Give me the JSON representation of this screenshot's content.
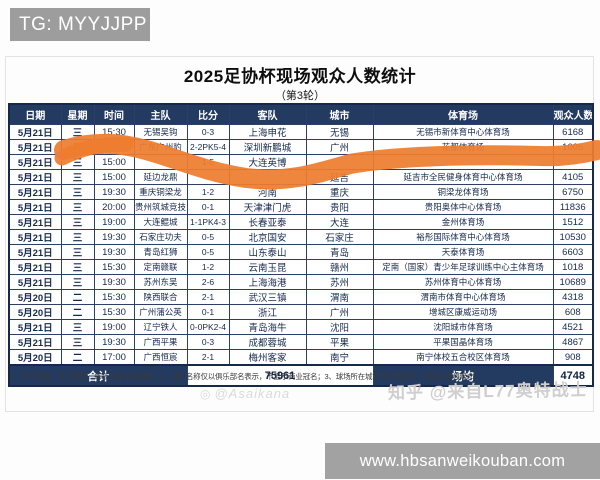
{
  "badge": {
    "text": "TG: MYYJJPP"
  },
  "title": "2025足协杯现场观众人数统计",
  "subtitle": "（第3轮）",
  "table": {
    "headers": [
      "日期",
      "星期",
      "时间",
      "主队",
      "比分",
      "客队",
      "城市",
      "体育场",
      "观众人数"
    ],
    "rows": [
      [
        "5月21日",
        "三",
        "15:30",
        "无锡吴钩",
        "0-3",
        "上海申花",
        "无锡",
        "无锡市新体育中心体育场",
        "6168"
      ],
      [
        "5月21日",
        "三",
        "",
        "广东广州豹",
        "2-2PK5-4",
        "深圳新鹏城",
        "广州",
        "花都体育场",
        "1005"
      ],
      [
        "5月21日",
        "三",
        "15:00",
        "",
        "1-5",
        "大连英博",
        "",
        "",
        ""
      ],
      [
        "5月21日",
        "三",
        "15:00",
        "延边龙鼎",
        "",
        "",
        "延吉",
        "延吉市全民健身体育中心体育场",
        "4105"
      ],
      [
        "5月21日",
        "三",
        "19:30",
        "重庆铜梁龙",
        "1-2",
        "河南",
        "重庆",
        "铜梁龙体育场",
        "6750"
      ],
      [
        "5月21日",
        "三",
        "20:00",
        "贵州筑城竞技",
        "0-1",
        "天津津门虎",
        "贵阳",
        "贵阳奥体中心体育场",
        "11836"
      ],
      [
        "5月21日",
        "三",
        "19:00",
        "大连鲲城",
        "1-1PK4-3",
        "长春亚泰",
        "大连",
        "金州体育场",
        "1512"
      ],
      [
        "5月21日",
        "三",
        "19:30",
        "石家庄功夫",
        "0-5",
        "北京国安",
        "石家庄",
        "裕彤国际体育中心体育场",
        "10530"
      ],
      [
        "5月21日",
        "三",
        "19:30",
        "青岛红狮",
        "0-5",
        "山东泰山",
        "青岛",
        "天泰体育场",
        "6603"
      ],
      [
        "5月21日",
        "三",
        "15:30",
        "定南赣联",
        "1-2",
        "云南玉昆",
        "赣州",
        "定南（国家）青少年足球训练中心主体育场",
        "1018"
      ],
      [
        "5月21日",
        "三",
        "19:30",
        "苏州东吴",
        "2-6",
        "上海海港",
        "苏州",
        "苏州体育中心体育场",
        "10689"
      ],
      [
        "5月20日",
        "二",
        "15:30",
        "陕西联合",
        "2-1",
        "武汉三镇",
        "渭南",
        "渭南市体育中心体育场",
        "4318"
      ],
      [
        "5月20日",
        "二",
        "15:30",
        "广州蒲公英",
        "0-1",
        "浙江",
        "广州",
        "增城区康威运动场",
        "608"
      ],
      [
        "5月21日",
        "三",
        "19:00",
        "辽宁铁人",
        "0-0PK2-4",
        "青岛海牛",
        "沈阳",
        "沈阳城市体育场",
        "4521"
      ],
      [
        "5月21日",
        "三",
        "19:30",
        "广西平果",
        "0-3",
        "成都蓉城",
        "平果",
        "平果国晶体育场",
        "4867"
      ],
      [
        "5月20日",
        "二",
        "17:00",
        "广西恒宸",
        "2-1",
        "梅州客家",
        "南宁",
        "南宁体校五合校区体育场",
        "908"
      ]
    ],
    "footer": {
      "total_label": "合计",
      "total_value": "75961",
      "avg_label": "场均",
      "avg_value": "4748"
    }
  },
  "footnote": "1、官方数据，自行整理，每场比赛现场播报；2、球队名称仅以俱乐部名表示，不显示商业冠名；3、球场所在城市显示直辖市、地级市或县级市。",
  "watermarks": {
    "asaikana": "@Asaikana",
    "zhihu": "知乎 @来自L77奥特战士"
  },
  "bottom_bar": {
    "url": "www.hbsanweikouban.com"
  },
  "colors": {
    "header_bg": "#233a61",
    "marker_orange": "#ee7d2f",
    "overlay_gray": "#a2a2a2"
  }
}
